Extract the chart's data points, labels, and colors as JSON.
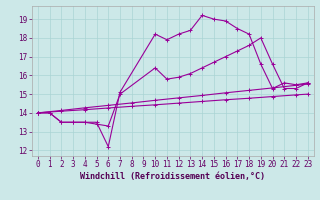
{
  "bg_color": "#cce8e8",
  "line_color": "#990099",
  "xlim": [
    -0.5,
    23.5
  ],
  "ylim": [
    11.7,
    19.7
  ],
  "yticks": [
    12,
    13,
    14,
    15,
    16,
    17,
    18,
    19
  ],
  "xticks": [
    0,
    1,
    2,
    3,
    4,
    5,
    6,
    7,
    8,
    9,
    10,
    11,
    12,
    13,
    14,
    15,
    16,
    17,
    18,
    19,
    20,
    21,
    22,
    23
  ],
  "line1_x": [
    0,
    1,
    2,
    3,
    4,
    5,
    6,
    7,
    10,
    11,
    12,
    13,
    14,
    15,
    16,
    17,
    18,
    19,
    20,
    21,
    22,
    23
  ],
  "line1_y": [
    14.0,
    14.0,
    13.5,
    13.5,
    13.5,
    13.5,
    12.2,
    15.1,
    18.2,
    17.9,
    18.2,
    18.4,
    19.2,
    19.0,
    18.9,
    18.5,
    18.2,
    16.6,
    15.3,
    15.6,
    15.5,
    15.6
  ],
  "line2_x": [
    0,
    1,
    2,
    3,
    4,
    5,
    6,
    7,
    10,
    11,
    12,
    13,
    14,
    15,
    16,
    17,
    18,
    19,
    20,
    21,
    22,
    23
  ],
  "line2_y": [
    14.0,
    14.0,
    13.5,
    13.5,
    13.5,
    13.4,
    13.3,
    15.0,
    16.4,
    15.8,
    15.9,
    16.1,
    16.4,
    16.7,
    17.0,
    17.3,
    17.6,
    18.0,
    16.6,
    15.3,
    15.3,
    15.6
  ],
  "line3_x": [
    0,
    2,
    4,
    6,
    8,
    10,
    12,
    14,
    16,
    18,
    20,
    22,
    23
  ],
  "line3_y": [
    14.0,
    14.13,
    14.27,
    14.4,
    14.53,
    14.67,
    14.8,
    14.93,
    15.07,
    15.2,
    15.33,
    15.47,
    15.54
  ],
  "line4_x": [
    0,
    2,
    4,
    6,
    8,
    10,
    12,
    14,
    16,
    18,
    20,
    22,
    23
  ],
  "line4_y": [
    14.0,
    14.09,
    14.17,
    14.26,
    14.35,
    14.43,
    14.52,
    14.61,
    14.7,
    14.78,
    14.87,
    14.96,
    15.0
  ],
  "xlabel": "Windchill (Refroidissement éolien,°C)",
  "grid_color": "#aad4d4",
  "tick_fontsize": 5.5,
  "label_fontsize": 6.0
}
